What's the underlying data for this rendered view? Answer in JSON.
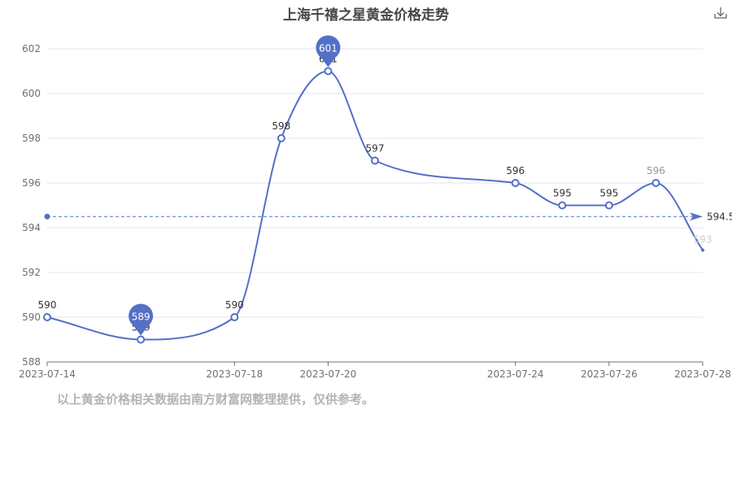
{
  "title": "上海千禧之星黄金价格走势",
  "footnote": "以上黄金价格相关数据由南方财富网整理提供，仅供参考。",
  "toolbar": {
    "download_icon": "download-icon"
  },
  "colors": {
    "series": "#5470c6",
    "grid": "#e0e6f1",
    "axis": "#6e7079",
    "faded_label": "#cccccc"
  },
  "chart_data": {
    "type": "line",
    "title": "上海千禧之星黄金价格走势",
    "x": [
      "2023-07-14",
      "2023-07-16",
      "2023-07-18",
      "2023-07-19",
      "2023-07-20",
      "2023-07-21",
      "2023-07-24",
      "2023-07-25",
      "2023-07-26",
      "2023-07-27",
      "2023-07-28"
    ],
    "x_tick_labels": [
      "2023-07-14",
      "2023-07-18",
      "2023-07-20",
      "2023-07-24",
      "2023-07-26",
      "2023-07-28"
    ],
    "series": [
      {
        "values": [
          590,
          589,
          590,
          598,
          601,
          597,
          596,
          595,
          595,
          596,
          593
        ]
      }
    ],
    "data_labels": [
      "590",
      "589",
      "590",
      "598",
      "601",
      "597",
      "596",
      "595",
      "595",
      "596",
      "593"
    ],
    "ylim": [
      588,
      602
    ],
    "y_ticks": [
      588,
      590,
      592,
      594,
      596,
      598,
      600,
      602
    ],
    "mark_points": [
      {
        "type": "max",
        "value": 601,
        "label": "601"
      },
      {
        "type": "min",
        "value": 589,
        "label": "589"
      }
    ],
    "mark_line": {
      "type": "average",
      "value": 594.5,
      "label": "594.5"
    },
    "grid": true,
    "xlabel": "",
    "ylabel": ""
  }
}
